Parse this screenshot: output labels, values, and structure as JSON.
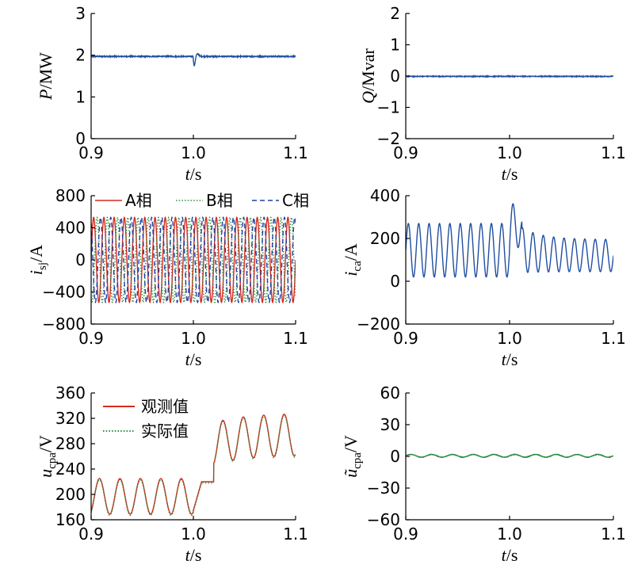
{
  "chart_data": [
    {
      "id": "p",
      "type": "line",
      "xlabel": {
        "var": "t",
        "unit": "/s"
      },
      "ylabel": {
        "var": "P",
        "sub": "",
        "unit": "/MW"
      },
      "xlim": [
        0.9,
        1.1
      ],
      "ylim": [
        0,
        3
      ],
      "xticks": [
        "0.9",
        "1.0",
        "1.1"
      ],
      "yticks": [
        {
          "v": 0,
          "t": "0"
        },
        {
          "v": 1,
          "t": "1"
        },
        {
          "v": 2,
          "t": "2"
        },
        {
          "v": 3,
          "t": "3"
        }
      ],
      "series": [
        {
          "color": "#1f4fa0",
          "style": "solid",
          "gen": {
            "kind": "flat",
            "base": 1.97,
            "noise": 0.012,
            "dip": {
              "t": 1.0,
              "depth": 0.22,
              "overshoot": 0.06
            }
          }
        }
      ]
    },
    {
      "id": "q",
      "type": "line",
      "xlabel": {
        "var": "t",
        "unit": "/s"
      },
      "ylabel": {
        "var": "Q",
        "sub": "",
        "unit": "/Mvar"
      },
      "xlim": [
        0.9,
        1.1
      ],
      "ylim": [
        -2,
        2
      ],
      "xticks": [
        "0.9",
        "1.0",
        "1.1"
      ],
      "yticks": [
        {
          "v": -2,
          "t": "−2"
        },
        {
          "v": -1,
          "t": "−1"
        },
        {
          "v": 0,
          "t": "0"
        },
        {
          "v": 1,
          "t": "1"
        },
        {
          "v": 2,
          "t": "2"
        }
      ],
      "series": [
        {
          "color": "#1f4fa0",
          "style": "solid",
          "gen": {
            "kind": "flat",
            "base": -0.01,
            "noise": 0.012
          }
        }
      ]
    },
    {
      "id": "isj",
      "type": "line",
      "xlabel": {
        "var": "t",
        "unit": "/s"
      },
      "ylabel": {
        "var": "i",
        "sub": "sj",
        "unit": "/A"
      },
      "xlim": [
        0.9,
        1.1
      ],
      "ylim": [
        -800,
        800
      ],
      "xticks": [
        "0.9",
        "1.0",
        "1.1"
      ],
      "yticks": [
        {
          "v": -800,
          "t": "−800"
        },
        {
          "v": -400,
          "t": "−400"
        },
        {
          "v": 0,
          "t": "0"
        },
        {
          "v": 400,
          "t": "400"
        },
        {
          "v": 800,
          "t": "800"
        }
      ],
      "legend": {
        "position": "top",
        "entries": [
          "A相",
          "B相",
          "C相"
        ]
      },
      "series": [
        {
          "name": "A相",
          "color": "#d62a1e",
          "style": "solid",
          "gen": {
            "kind": "sine",
            "amp": 530,
            "freq": 100,
            "phase": 0
          }
        },
        {
          "name": "B相",
          "color": "#2e8b3e",
          "style": "dotted",
          "gen": {
            "kind": "sine",
            "amp": 530,
            "freq": 100,
            "phase": -2.094
          }
        },
        {
          "name": "C相",
          "color": "#2041a0",
          "style": "dashed",
          "gen": {
            "kind": "sine",
            "amp": 530,
            "freq": 100,
            "phase": 2.094
          }
        }
      ]
    },
    {
      "id": "ica",
      "type": "line",
      "xlabel": {
        "var": "t",
        "unit": "/s"
      },
      "ylabel": {
        "var": "i",
        "sub": "ca",
        "unit": "/A"
      },
      "xlim": [
        0.9,
        1.1
      ],
      "ylim": [
        -200,
        400
      ],
      "xticks": [
        "0.9",
        "1.0",
        "1.1"
      ],
      "yticks": [
        {
          "v": -200,
          "t": "−200"
        },
        {
          "v": 0,
          "t": "0"
        },
        {
          "v": 200,
          "t": "200"
        },
        {
          "v": 400,
          "t": "400"
        }
      ],
      "series": [
        {
          "color": "#1f4fa0",
          "style": "solid",
          "gen": {
            "kind": "ica"
          }
        }
      ]
    },
    {
      "id": "ucpa",
      "type": "line",
      "xlabel": {
        "var": "t",
        "unit": "/s"
      },
      "ylabel": {
        "var": "u",
        "sub": "cpa",
        "unit": "/V"
      },
      "xlim": [
        0.9,
        1.1
      ],
      "ylim": [
        160,
        360
      ],
      "xticks": [
        "0.9",
        "1.0",
        "1.1"
      ],
      "yticks": [
        {
          "v": 160,
          "t": "160"
        },
        {
          "v": 200,
          "t": "200"
        },
        {
          "v": 240,
          "t": "240"
        },
        {
          "v": 280,
          "t": "280"
        },
        {
          "v": 320,
          "t": "320"
        },
        {
          "v": 360,
          "t": "360"
        }
      ],
      "legend": {
        "position": "top-left",
        "entries": [
          "观测值",
          "实际值"
        ]
      },
      "series": [
        {
          "name": "观测值",
          "color": "#d62a1e",
          "style": "solid",
          "gen": {
            "kind": "ucpa",
            "offset": 0
          }
        },
        {
          "name": "实际值",
          "color": "#2e8b3e",
          "style": "dotted",
          "gen": {
            "kind": "ucpa",
            "offset": -2
          }
        }
      ]
    },
    {
      "id": "uerr",
      "type": "line",
      "xlabel": {
        "var": "t",
        "unit": "/s"
      },
      "ylabel": {
        "var": "ũ",
        "sub": "cpa",
        "unit": "/V"
      },
      "xlim": [
        0.9,
        1.1
      ],
      "ylim": [
        -60,
        60
      ],
      "xticks": [
        "0.9",
        "1.0",
        "1.1"
      ],
      "yticks": [
        {
          "v": -60,
          "t": "−60"
        },
        {
          "v": -30,
          "t": "−30"
        },
        {
          "v": 0,
          "t": "0"
        },
        {
          "v": 30,
          "t": "30"
        },
        {
          "v": 60,
          "t": "60"
        }
      ],
      "series": [
        {
          "color": "#2e8b3e",
          "style": "solid",
          "gen": {
            "kind": "sine-offset",
            "amp": 1.3,
            "freq": 50,
            "base": 0.5,
            "noise": 0.4
          }
        }
      ]
    }
  ]
}
